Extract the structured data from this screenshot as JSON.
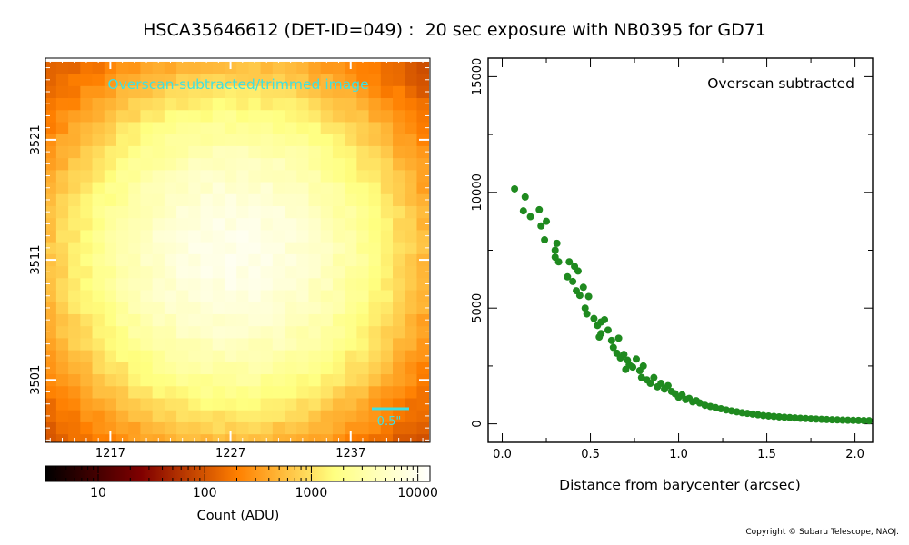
{
  "title": "HSCA35646612 (DET-ID=049) :  20 sec exposure with NB0395 for GD71",
  "copyright": "Copyright © Subaru Telescope, NAOJ.",
  "colors": {
    "scatter": "#1f8a1f",
    "annotation": "#40e0e0",
    "background": "#ffffff"
  },
  "chart_data": [
    {
      "type": "heatmap",
      "annotation": "Overscan-subtracted/trimmed image",
      "xticks": [
        1217,
        1227,
        1237
      ],
      "yticks": [
        3521,
        3511,
        3501
      ],
      "xrange": [
        1211.6,
        1243.6
      ],
      "yrange": [
        3495.8,
        3527.8
      ],
      "center": [
        1227.2,
        3511.5
      ],
      "peak_adu": 9000,
      "background_adu": 75,
      "sigma_px": 6.5,
      "scale_bar_label": "0.5\"",
      "scale_bar_arcsec": 0.5,
      "colormap": "afmhot",
      "colorbar": {
        "label": "Count (ADU)",
        "scale": "log",
        "range": [
          3.2,
          13000
        ],
        "ticks": [
          10,
          100,
          1000,
          10000
        ],
        "tick_labels": [
          "10",
          "100",
          "1000",
          "10000"
        ]
      }
    },
    {
      "type": "scatter",
      "annotation": "Overscan subtracted",
      "xlabel": "Distance from barycenter (arcsec)",
      "xlim": [
        -0.08,
        2.1
      ],
      "ylim": [
        -800,
        15800
      ],
      "xticks": [
        0.0,
        0.5,
        1.0,
        1.5,
        2.0
      ],
      "xtick_labels": [
        "0.0",
        "0.5",
        "1.0",
        "1.5",
        "2.0"
      ],
      "yticks": [
        0,
        5000,
        10000,
        15000
      ],
      "ytick_labels": [
        "0",
        "5000",
        "10000",
        "15000"
      ],
      "points": [
        [
          0.07,
          10150
        ],
        [
          0.13,
          9800
        ],
        [
          0.12,
          9200
        ],
        [
          0.16,
          8950
        ],
        [
          0.21,
          9250
        ],
        [
          0.22,
          8550
        ],
        [
          0.25,
          8750
        ],
        [
          0.24,
          7950
        ],
        [
          0.31,
          7800
        ],
        [
          0.3,
          7500
        ],
        [
          0.3,
          7200
        ],
        [
          0.32,
          7000
        ],
        [
          0.38,
          7000
        ],
        [
          0.41,
          6800
        ],
        [
          0.43,
          6600
        ],
        [
          0.37,
          6350
        ],
        [
          0.4,
          6150
        ],
        [
          0.42,
          5750
        ],
        [
          0.46,
          5900
        ],
        [
          0.49,
          5500
        ],
        [
          0.44,
          5550
        ],
        [
          0.47,
          5000
        ],
        [
          0.48,
          4750
        ],
        [
          0.52,
          4550
        ],
        [
          0.56,
          4400
        ],
        [
          0.58,
          4500
        ],
        [
          0.54,
          4250
        ],
        [
          0.6,
          4050
        ],
        [
          0.56,
          3900
        ],
        [
          0.55,
          3750
        ],
        [
          0.62,
          3600
        ],
        [
          0.66,
          3700
        ],
        [
          0.63,
          3300
        ],
        [
          0.65,
          3050
        ],
        [
          0.67,
          2850
        ],
        [
          0.69,
          3000
        ],
        [
          0.71,
          2750
        ],
        [
          0.72,
          2550
        ],
        [
          0.7,
          2350
        ],
        [
          0.74,
          2450
        ],
        [
          0.76,
          2800
        ],
        [
          0.78,
          2300
        ],
        [
          0.8,
          2500
        ],
        [
          0.79,
          2000
        ],
        [
          0.82,
          1900
        ],
        [
          0.84,
          1750
        ],
        [
          0.86,
          2000
        ],
        [
          0.88,
          1600
        ],
        [
          0.9,
          1750
        ],
        [
          0.92,
          1500
        ],
        [
          0.94,
          1650
        ],
        [
          0.96,
          1400
        ],
        [
          0.98,
          1300
        ],
        [
          1.0,
          1150
        ],
        [
          1.02,
          1250
        ],
        [
          1.04,
          1050
        ],
        [
          1.06,
          1100
        ],
        [
          1.08,
          950
        ],
        [
          1.1,
          1000
        ],
        [
          1.12,
          900
        ],
        [
          1.15,
          800
        ],
        [
          1.18,
          750
        ],
        [
          1.21,
          700
        ],
        [
          1.24,
          650
        ],
        [
          1.27,
          600
        ],
        [
          1.3,
          560
        ],
        [
          1.33,
          520
        ],
        [
          1.36,
          480
        ],
        [
          1.39,
          450
        ],
        [
          1.42,
          420
        ],
        [
          1.45,
          390
        ],
        [
          1.48,
          360
        ],
        [
          1.51,
          340
        ],
        [
          1.54,
          320
        ],
        [
          1.57,
          300
        ],
        [
          1.6,
          285
        ],
        [
          1.63,
          270
        ],
        [
          1.66,
          255
        ],
        [
          1.69,
          240
        ],
        [
          1.72,
          230
        ],
        [
          1.75,
          215
        ],
        [
          1.78,
          205
        ],
        [
          1.81,
          195
        ],
        [
          1.84,
          185
        ],
        [
          1.87,
          175
        ],
        [
          1.9,
          170
        ],
        [
          1.93,
          160
        ],
        [
          1.96,
          155
        ],
        [
          1.99,
          150
        ],
        [
          2.02,
          145
        ],
        [
          2.05,
          140
        ],
        [
          2.08,
          135
        ]
      ]
    }
  ]
}
